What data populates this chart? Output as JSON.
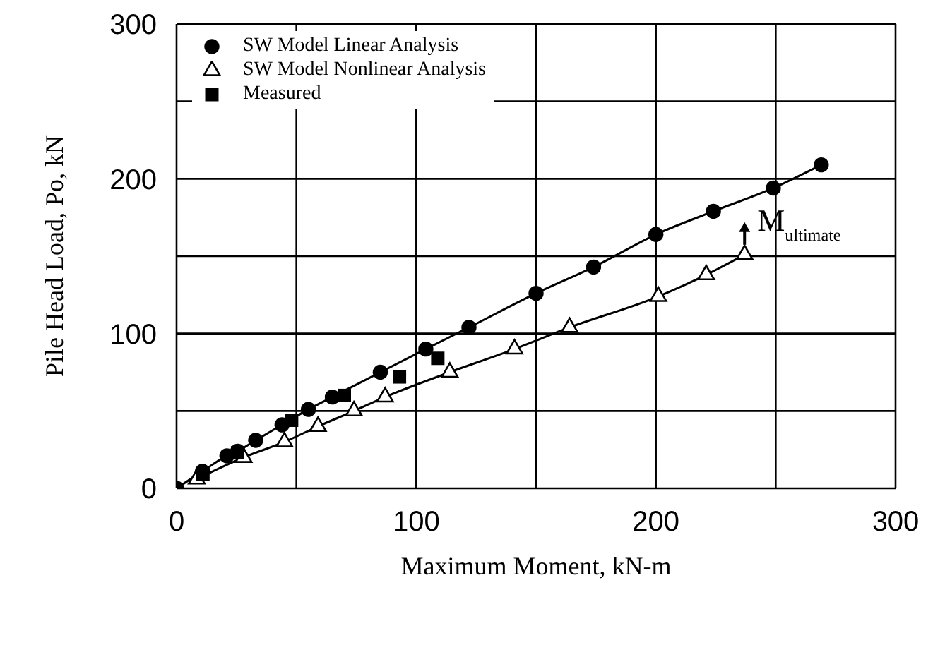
{
  "chart_data": {
    "type": "line",
    "xlabel": "Maximum Moment, kN-m",
    "ylabel": "Pile Head Load, Po, kN",
    "series": [
      {
        "name": "SW Model Linear Analysis",
        "color": "#000000",
        "marker": "circle",
        "line_style": "solid",
        "x": [
          0,
          10.8,
          21,
          25.5,
          33,
          44,
          55,
          65,
          85,
          104,
          122,
          150,
          174,
          200,
          224,
          249,
          269
        ],
        "values": [
          0,
          11,
          21,
          24,
          31,
          41,
          51,
          59,
          75,
          90,
          104,
          126,
          143,
          164,
          179,
          194,
          209
        ]
      },
      {
        "name": "SW Model Nonlinear Analysis",
        "color": "#000000",
        "marker": "triangle",
        "line_style": "solid",
        "x": [
          8.4,
          28,
          45,
          59,
          74,
          87,
          114,
          141,
          164,
          201,
          221,
          237
        ],
        "values": [
          6,
          20,
          30,
          40,
          50,
          59,
          75,
          90,
          104,
          124,
          138,
          151
        ]
      },
      {
        "name": "Measured",
        "type": "scatter",
        "color": "#000000",
        "marker": "square",
        "x": [
          11,
          25.5,
          48,
          70,
          93,
          109
        ],
        "values": [
          9,
          23,
          44,
          60,
          72,
          84
        ]
      }
    ],
    "xlim": [
      0,
      300
    ],
    "xticks": [
      0,
      {
        "value": 50,
        "label": null
      },
      100,
      {
        "value": 150,
        "label": null
      },
      200,
      {
        "value": 250,
        "label": null
      },
      300
    ],
    "ylim": [
      0,
      300
    ],
    "yticks": [
      0,
      {
        "value": 50,
        "label": null
      },
      100,
      {
        "value": 150,
        "label": null
      },
      200,
      {
        "value": 250,
        "label": null
      },
      300
    ],
    "grid": true,
    "legend": "top left",
    "annotations": [
      {
        "text": "M$_{ultimate}$",
        "x": 237,
        "y": 151
      }
    ]
  }
}
